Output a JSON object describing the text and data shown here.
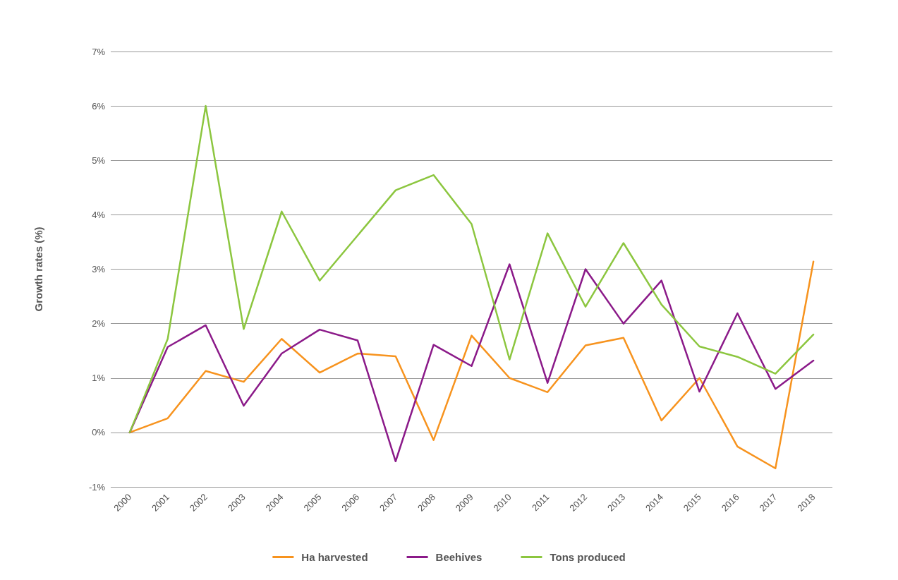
{
  "chart_data": {
    "type": "line",
    "ylabel": "Growth rates (%)",
    "categories": [
      "2000",
      "2001",
      "2002",
      "2003",
      "2004",
      "2005",
      "2006",
      "2007",
      "2008",
      "2009",
      "2010",
      "2011",
      "2012",
      "2013",
      "2014",
      "2015",
      "2016",
      "2017",
      "2018"
    ],
    "series": [
      {
        "name": "Ha harvested",
        "color": "#f7931e",
        "values": [
          0,
          0.26,
          1.13,
          0.93,
          1.72,
          1.1,
          1.45,
          1.4,
          -0.14,
          1.78,
          1.0,
          0.74,
          1.6,
          1.74,
          0.22,
          1.0,
          -0.26,
          -0.66,
          3.14
        ]
      },
      {
        "name": "Beehives",
        "color": "#8b1a89",
        "values": [
          0,
          1.57,
          1.97,
          0.49,
          1.45,
          1.89,
          1.69,
          -0.53,
          1.61,
          1.22,
          3.09,
          0.91,
          3.0,
          2.0,
          2.79,
          0.75,
          2.19,
          0.8,
          1.32
        ]
      },
      {
        "name": "Tons produced",
        "color": "#8cc63f",
        "values": [
          0,
          1.72,
          6.0,
          1.9,
          4.06,
          2.79,
          3.62,
          4.45,
          4.73,
          3.83,
          1.34,
          3.66,
          2.31,
          3.48,
          2.35,
          1.58,
          1.39,
          1.08,
          1.8
        ]
      }
    ],
    "ylim": [
      -1,
      7
    ],
    "yticks": [
      {
        "value": -1,
        "label": "-1%"
      },
      {
        "value": 0,
        "label": "0%"
      },
      {
        "value": 1,
        "label": "1%"
      },
      {
        "value": 2,
        "label": "2%"
      },
      {
        "value": 3,
        "label": "3%"
      },
      {
        "value": 4,
        "label": "4%"
      },
      {
        "value": 5,
        "label": "5%"
      },
      {
        "value": 6,
        "label": "6%"
      },
      {
        "value": 7,
        "label": "7%"
      }
    ],
    "grid": "y",
    "legend": "bottom",
    "marker": "none",
    "line_style": "solid"
  }
}
